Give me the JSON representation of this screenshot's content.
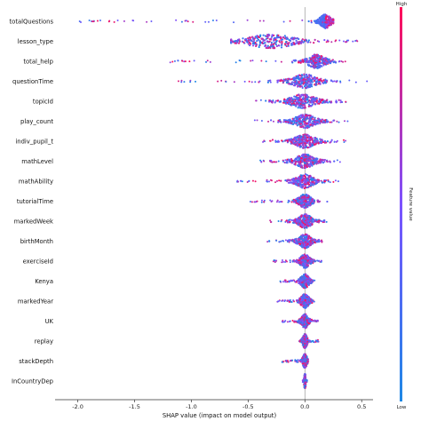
{
  "chart_data": {
    "type": "scatter",
    "subtype": "shap-beeswarm",
    "xlabel": "SHAP value (impact on model output)",
    "xlim": [
      -2.2,
      0.6
    ],
    "xticks": [
      -2.0,
      -1.5,
      -1.0,
      -0.5,
      0.0,
      0.5
    ],
    "xtick_labels": [
      "-2.0",
      "-1.5",
      "-1.0",
      "-0.5",
      "0.0",
      "0.5"
    ],
    "colorbar": {
      "label": "Feature value",
      "high_label": "High",
      "low_label": "Low",
      "low_color": "#1e88e5",
      "high_color": "#ff0d57"
    },
    "features": [
      {
        "name": "totalQuestions",
        "min": -2.05,
        "max": 0.25,
        "center": 0.18,
        "spread": 0.07
      },
      {
        "name": "lesson_type",
        "min": -0.65,
        "max": 0.5,
        "center": -0.3,
        "spread": 0.35
      },
      {
        "name": "total_help",
        "min": -1.35,
        "max": 0.38,
        "center": 0.1,
        "spread": 0.12
      },
      {
        "name": "questionTime",
        "min": -1.2,
        "max": 0.55,
        "center": 0.0,
        "spread": 0.18
      },
      {
        "name": "topicId",
        "min": -0.48,
        "max": 0.38,
        "center": -0.02,
        "spread": 0.18
      },
      {
        "name": "play_count",
        "min": -0.45,
        "max": 0.38,
        "center": 0.0,
        "spread": 0.15
      },
      {
        "name": "indiv_pupil_t",
        "min": -0.45,
        "max": 0.36,
        "center": 0.0,
        "spread": 0.14
      },
      {
        "name": "mathLevel",
        "min": -0.4,
        "max": 0.32,
        "center": 0.0,
        "spread": 0.13
      },
      {
        "name": "mathAbility",
        "min": -0.6,
        "max": 0.3,
        "center": 0.0,
        "spread": 0.12
      },
      {
        "name": "tutorialTime",
        "min": -0.48,
        "max": 0.2,
        "center": 0.0,
        "spread": 0.08
      },
      {
        "name": "markedWeek",
        "min": -0.32,
        "max": 0.22,
        "center": 0.0,
        "spread": 0.09
      },
      {
        "name": "birthMonth",
        "min": -0.33,
        "max": 0.15,
        "center": 0.0,
        "spread": 0.08
      },
      {
        "name": "exerciseId",
        "min": -0.28,
        "max": 0.15,
        "center": 0.0,
        "spread": 0.06
      },
      {
        "name": "Kenya",
        "min": -0.23,
        "max": 0.1,
        "center": 0.0,
        "spread": 0.05
      },
      {
        "name": "markedYear",
        "min": -0.25,
        "max": 0.12,
        "center": 0.0,
        "spread": 0.05
      },
      {
        "name": "UK",
        "min": -0.2,
        "max": 0.12,
        "center": 0.0,
        "spread": 0.04
      },
      {
        "name": "replay",
        "min": -0.05,
        "max": 0.12,
        "center": 0.0,
        "spread": 0.02
      },
      {
        "name": "stackDepth",
        "min": -0.2,
        "max": 0.03,
        "center": 0.0,
        "spread": 0.02
      },
      {
        "name": "InCountryDep",
        "min": -0.02,
        "max": 0.02,
        "center": 0.0,
        "spread": 0.005
      }
    ]
  }
}
